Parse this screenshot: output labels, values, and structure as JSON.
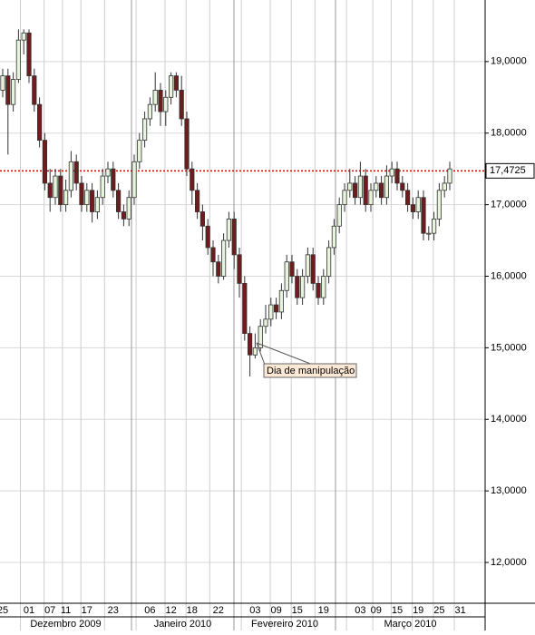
{
  "chart_data": {
    "type": "candlestick",
    "categories": [
      "25",
      null,
      null,
      null,
      null,
      "01",
      null,
      null,
      null,
      "07",
      null,
      null,
      "11",
      null,
      null,
      null,
      "17",
      null,
      null,
      null,
      null,
      "23",
      null,
      null,
      null,
      null,
      null,
      null,
      "06",
      null,
      null,
      null,
      "12",
      null,
      null,
      null,
      "18",
      null,
      null,
      null,
      null,
      "22",
      null,
      null,
      null,
      null,
      null,
      null,
      "03",
      null,
      null,
      null,
      "09",
      null,
      null,
      null,
      "15",
      null,
      null,
      null,
      null,
      "19",
      null,
      null,
      null,
      null,
      null,
      null,
      "03",
      null,
      null,
      "09",
      null,
      null,
      null,
      "15",
      null,
      null,
      null,
      "19",
      null,
      null,
      null,
      "25",
      null,
      null,
      null,
      "31"
    ],
    "open": [
      18.6,
      18.8,
      18.4,
      18.75,
      19.3,
      19.4,
      18.8,
      18.4,
      17.9,
      17.3,
      17.1,
      17.4,
      17.0,
      17.2,
      17.6,
      17.3,
      17.0,
      17.2,
      16.9,
      17.1,
      17.4,
      17.5,
      17.2,
      16.9,
      16.8,
      17.1,
      17.6,
      17.9,
      18.2,
      18.4,
      18.6,
      18.3,
      18.5,
      18.8,
      18.6,
      18.2,
      17.5,
      17.2,
      16.9,
      16.7,
      16.4,
      16.2,
      16.0,
      16.5,
      16.8,
      16.3,
      15.9,
      15.2,
      14.9,
      15.0,
      15.3,
      15.4,
      15.6,
      15.5,
      15.8,
      16.2,
      16.0,
      15.7,
      16.0,
      16.3,
      15.9,
      15.7,
      16.0,
      16.4,
      16.7,
      17.0,
      17.2,
      17.3,
      17.1,
      17.4,
      17.0,
      17.2,
      17.3,
      17.1,
      17.4,
      17.5,
      17.3,
      17.2,
      17.0,
      16.9,
      17.1,
      16.6,
      16.6,
      16.8,
      17.2,
      17.3,
      null,
      null
    ],
    "high": [
      18.9,
      18.9,
      18.85,
      19.45,
      19.45,
      19.45,
      18.9,
      18.5,
      18.0,
      17.5,
      17.5,
      17.5,
      17.35,
      17.75,
      17.7,
      17.4,
      17.3,
      17.3,
      17.2,
      17.5,
      17.6,
      17.6,
      17.3,
      17.0,
      17.2,
      17.7,
      18.0,
      18.3,
      18.5,
      18.85,
      18.7,
      18.6,
      18.85,
      18.85,
      18.8,
      18.3,
      17.6,
      17.3,
      17.0,
      16.8,
      16.5,
      16.3,
      16.6,
      16.9,
      16.9,
      16.4,
      16.0,
      15.3,
      15.2,
      15.4,
      15.6,
      15.7,
      15.7,
      15.9,
      16.3,
      16.3,
      16.1,
      16.1,
      16.4,
      16.4,
      16.0,
      16.1,
      16.5,
      16.8,
      17.1,
      17.3,
      17.5,
      17.4,
      17.6,
      17.5,
      17.3,
      17.4,
      17.4,
      17.55,
      17.6,
      17.6,
      17.4,
      17.3,
      17.1,
      17.2,
      17.2,
      16.7,
      16.9,
      17.3,
      17.4,
      17.6,
      null,
      null
    ],
    "low": [
      18.5,
      17.7,
      18.3,
      18.7,
      19.1,
      18.7,
      18.3,
      17.8,
      17.2,
      16.9,
      17.0,
      16.9,
      16.9,
      17.1,
      17.2,
      16.9,
      16.9,
      16.75,
      16.8,
      17.0,
      17.3,
      17.1,
      16.8,
      16.7,
      16.7,
      17.0,
      17.5,
      17.8,
      18.1,
      18.3,
      18.1,
      18.1,
      18.4,
      18.5,
      18.1,
      17.4,
      17.0,
      16.8,
      16.5,
      16.3,
      16.0,
      15.9,
      15.95,
      16.4,
      16.1,
      15.7,
      15.1,
      14.6,
      14.85,
      14.95,
      15.2,
      15.3,
      15.4,
      15.4,
      15.7,
      15.9,
      15.6,
      15.6,
      15.9,
      15.8,
      15.6,
      15.6,
      15.9,
      16.3,
      16.6,
      16.9,
      17.1,
      17.0,
      17.0,
      16.9,
      16.9,
      17.1,
      17.0,
      17.0,
      17.3,
      17.2,
      17.1,
      16.9,
      16.8,
      16.8,
      16.5,
      16.5,
      16.5,
      16.7,
      17.1,
      17.2,
      null,
      null
    ],
    "close": [
      18.8,
      18.4,
      18.75,
      19.3,
      19.4,
      18.8,
      18.4,
      17.9,
      17.3,
      17.1,
      17.4,
      17.0,
      17.2,
      17.6,
      17.3,
      17.0,
      17.2,
      16.9,
      17.1,
      17.4,
      17.5,
      17.2,
      16.9,
      16.8,
      17.1,
      17.6,
      17.9,
      18.2,
      18.4,
      18.6,
      18.3,
      18.5,
      18.8,
      18.6,
      18.2,
      17.5,
      17.2,
      16.9,
      16.7,
      16.4,
      16.2,
      16.0,
      16.5,
      16.8,
      16.3,
      15.9,
      15.2,
      14.9,
      15.0,
      15.3,
      15.4,
      15.6,
      15.5,
      15.8,
      16.2,
      16.0,
      15.7,
      16.0,
      16.3,
      15.9,
      15.7,
      16.0,
      16.4,
      16.7,
      17.0,
      17.2,
      17.3,
      17.1,
      17.4,
      17.0,
      17.2,
      17.3,
      17.1,
      17.4,
      17.5,
      17.3,
      17.2,
      17.0,
      16.9,
      17.1,
      16.6,
      16.6,
      16.8,
      17.2,
      17.3,
      17.5,
      null,
      null
    ],
    "up_color": "#e6f4dc",
    "down_color": "#6e1c1c",
    "month_labels": [
      "Dezembro 2009",
      "Janeiro 2010",
      "Fevereiro 2010",
      "Março 2010"
    ],
    "last_price": {
      "value": 17.4725,
      "label": "17,4725"
    },
    "last_price_color": "#cc0000",
    "annotation": "Dia de manipulação",
    "ylim": [
      11.43,
      19.86
    ],
    "yticks": [
      {
        "value": 12,
        "label": "12,0000"
      },
      {
        "value": 13,
        "label": "13,0000"
      },
      {
        "value": 14,
        "label": "14,0000"
      },
      {
        "value": 15,
        "label": "15,0000"
      },
      {
        "value": 16,
        "label": "16,0000"
      },
      {
        "value": 17,
        "label": "17,0000"
      },
      {
        "value": 18,
        "label": "18,0000"
      },
      {
        "value": 19,
        "label": "19,0000"
      }
    ],
    "grid": true
  }
}
